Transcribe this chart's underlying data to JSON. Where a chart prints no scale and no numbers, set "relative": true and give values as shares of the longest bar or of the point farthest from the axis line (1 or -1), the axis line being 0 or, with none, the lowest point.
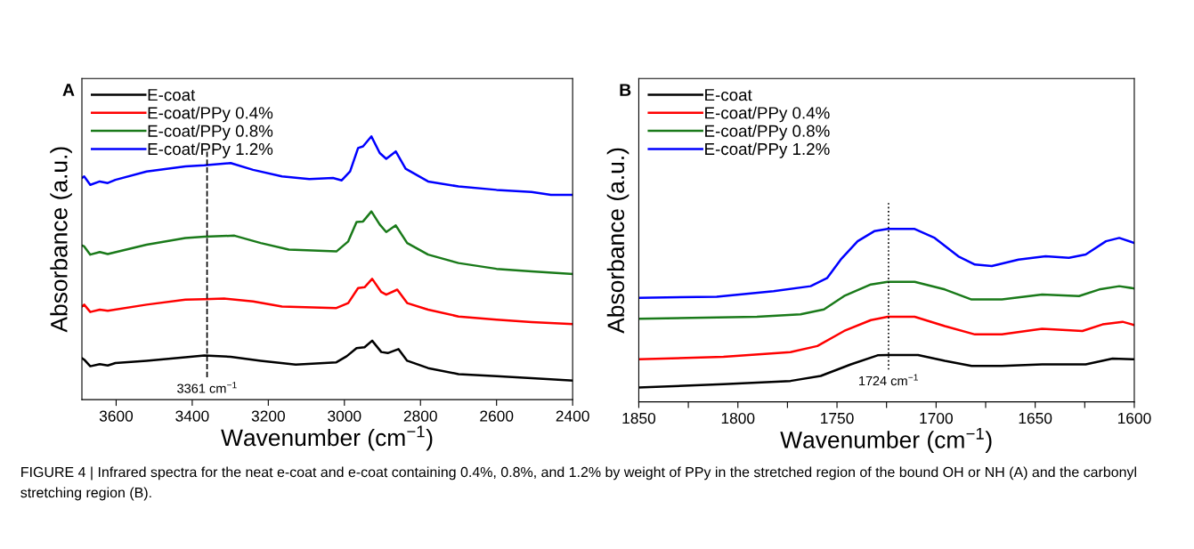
{
  "chart_data": [
    {
      "type": "line",
      "relative": true,
      "annotations": [
        "A",
        "FIGURE 4 | Infrared spectra for the neat e-coat and e-coat containing 0.4%, 0.8%, and 1.2% by weight of PPy in the stretched region of the bound OH or NH (A) and the carbonyl stretching region (B)."
      ],
      "xlabel": "Wavenumber (cm$^{−1}$)",
      "ylabel": "Absorbance (a.u.)",
      "xlim": [
        3690,
        2400
      ],
      "xticks": [
        3600,
        3400,
        3200,
        3000,
        2800,
        2600,
        2400
      ],
      "tick_labels": "x",
      "grid": false,
      "legend": "top left",
      "line_style": "solid",
      "marker": "none",
      "ref_lines": [
        {
          "axis": "x",
          "value": 3361,
          "label": "3361 cm$^{−1}$",
          "color": "#000000",
          "line_style": "dashed"
        }
      ],
      "series": [
        {
          "name": "E-coat",
          "color": "#000000",
          "x": [
            3690,
            3684,
            3668,
            3643,
            3622,
            3602,
            3520,
            3418,
            3368,
            3299,
            3220,
            3128,
            3021,
            2994,
            2968,
            2947,
            2927,
            2903,
            2886,
            2858,
            2835,
            2780,
            2700,
            2600,
            2508,
            2400
          ],
          "values": [
            0.158,
            0.152,
            0.127,
            0.135,
            0.13,
            0.139,
            0.148,
            0.161,
            0.168,
            0.163,
            0.148,
            0.133,
            0.142,
            0.165,
            0.196,
            0.199,
            0.224,
            0.181,
            0.177,
            0.192,
            0.148,
            0.12,
            0.097,
            0.089,
            0.082,
            0.073
          ]
        },
        {
          "name": "E-coat/PPy 0.4%",
          "color": "#ff0000",
          "x": [
            3690,
            3684,
            3668,
            3643,
            3622,
            3520,
            3418,
            3368,
            3316,
            3240,
            3164,
            3021,
            2990,
            2964,
            2947,
            2927,
            2903,
            2890,
            2861,
            2835,
            2780,
            2700,
            2600,
            2508,
            2400
          ],
          "values": [
            0.354,
            0.361,
            0.333,
            0.342,
            0.338,
            0.361,
            0.38,
            0.382,
            0.384,
            0.373,
            0.354,
            0.348,
            0.367,
            0.424,
            0.427,
            0.459,
            0.409,
            0.399,
            0.418,
            0.367,
            0.342,
            0.316,
            0.304,
            0.295,
            0.287
          ]
        },
        {
          "name": "E-coat/PPy 0.8%",
          "color": "#1a7a1a",
          "x": [
            3690,
            3684,
            3668,
            3643,
            3622,
            3520,
            3418,
            3368,
            3289,
            3220,
            3146,
            3021,
            2990,
            2968,
            2951,
            2929,
            2907,
            2890,
            2865,
            2835,
            2780,
            2700,
            2600,
            2508,
            2400
          ],
          "values": [
            0.586,
            0.582,
            0.551,
            0.561,
            0.553,
            0.589,
            0.614,
            0.619,
            0.623,
            0.595,
            0.57,
            0.563,
            0.601,
            0.675,
            0.677,
            0.715,
            0.665,
            0.637,
            0.662,
            0.595,
            0.551,
            0.519,
            0.497,
            0.487,
            0.477
          ]
        },
        {
          "name": "E-coat/PPy 1.2%",
          "color": "#0000ff",
          "x": [
            3690,
            3684,
            3668,
            3643,
            3622,
            3602,
            3520,
            3418,
            3368,
            3299,
            3240,
            3164,
            3092,
            3030,
            3007,
            2985,
            2964,
            2951,
            2929,
            2907,
            2890,
            2865,
            2839,
            2780,
            2700,
            2600,
            2508,
            2457,
            2400
          ],
          "values": [
            0.842,
            0.848,
            0.816,
            0.829,
            0.823,
            0.835,
            0.867,
            0.886,
            0.89,
            0.899,
            0.873,
            0.848,
            0.838,
            0.842,
            0.833,
            0.867,
            0.956,
            0.962,
            1.0,
            0.937,
            0.915,
            0.943,
            0.877,
            0.829,
            0.81,
            0.797,
            0.789,
            0.778,
            0.778
          ]
        }
      ]
    },
    {
      "type": "line",
      "relative": true,
      "annotations": [
        "B"
      ],
      "xlabel": "Wavenumber (cm$^{−1}$)",
      "ylabel": "Absorbance (a.u.)",
      "xlim": [
        1850,
        1600
      ],
      "xticks": [
        1850,
        {
          "value": 1825,
          "label": null
        },
        1800,
        {
          "value": 1775,
          "label": null
        },
        1750,
        {
          "value": 1725,
          "label": null
        },
        1700,
        {
          "value": 1675,
          "label": null
        },
        1650,
        {
          "value": 1625,
          "label": null
        },
        1600
      ],
      "tick_labels": "x",
      "grid": false,
      "legend": "top left",
      "line_style": "solid",
      "marker": "none",
      "ref_lines": [
        {
          "axis": "x",
          "value": 1724,
          "label": "1724 cm$^{−1}$",
          "color": "#000000",
          "line_style": "dotted"
        }
      ],
      "series": [
        {
          "name": "E-coat",
          "color": "#000000",
          "x": [
            1850,
            1807.3,
            1773.5,
            1758.2,
            1743,
            1729.5,
            1724.4,
            1709.1,
            1695.6,
            1682.1,
            1666.8,
            1646.5,
            1624.5,
            1611,
            1600
          ],
          "values": [
            0.083,
            0.102,
            0.121,
            0.15,
            0.217,
            0.269,
            0.271,
            0.271,
            0.237,
            0.208,
            0.208,
            0.217,
            0.217,
            0.25,
            0.246
          ]
        },
        {
          "name": "E-coat/PPy 0.4%",
          "color": "#ff0000",
          "x": [
            1850,
            1807.3,
            1773.5,
            1759.9,
            1746.4,
            1732.9,
            1724.4,
            1710.8,
            1695.6,
            1680.4,
            1666.8,
            1646.5,
            1626.2,
            1616,
            1605.9,
            1600
          ],
          "values": [
            0.246,
            0.26,
            0.288,
            0.323,
            0.41,
            0.473,
            0.492,
            0.492,
            0.438,
            0.39,
            0.39,
            0.423,
            0.41,
            0.448,
            0.463,
            0.444
          ]
        },
        {
          "name": "E-coat/PPy 0.8%",
          "color": "#1a7a1a",
          "x": [
            1850,
            1790.4,
            1768.4,
            1756.6,
            1746.4,
            1732.9,
            1724.4,
            1710.8,
            1695.6,
            1682.1,
            1666.8,
            1646.5,
            1627.9,
            1617.7,
            1607.6,
            1600
          ],
          "values": [
            0.481,
            0.492,
            0.506,
            0.535,
            0.612,
            0.679,
            0.694,
            0.694,
            0.65,
            0.592,
            0.592,
            0.621,
            0.612,
            0.65,
            0.669,
            0.656
          ]
        },
        {
          "name": "E-coat/PPy 1.2%",
          "color": "#0000ff",
          "x": [
            1850,
            1810.7,
            1782,
            1763.3,
            1754.9,
            1748.1,
            1739.6,
            1731.2,
            1724.4,
            1710.8,
            1700.7,
            1688.8,
            1680.4,
            1671.9,
            1658.4,
            1644.8,
            1633,
            1624.5,
            1614.3,
            1607.6,
            1600
          ],
          "values": [
            0.602,
            0.608,
            0.64,
            0.669,
            0.717,
            0.823,
            0.929,
            0.987,
            1.0,
            1.0,
            0.948,
            0.842,
            0.794,
            0.785,
            0.823,
            0.842,
            0.833,
            0.852,
            0.929,
            0.948,
            0.919
          ]
        }
      ]
    }
  ]
}
